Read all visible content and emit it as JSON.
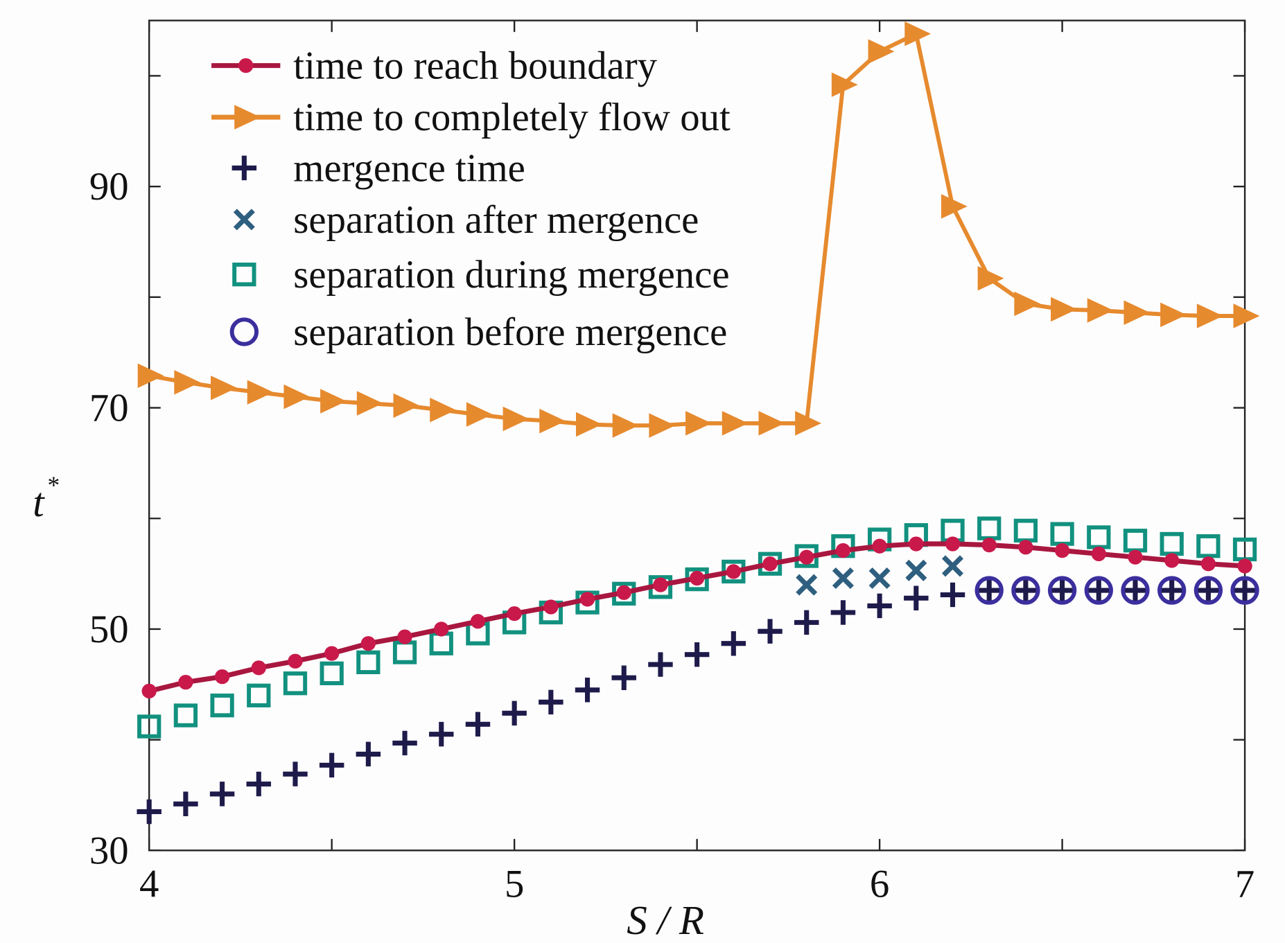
{
  "chart_data": {
    "type": "line",
    "title": "",
    "xlabel": "S / R",
    "ylabel": "t",
    "ylabel_superscript": "*",
    "xlim": [
      4,
      7
    ],
    "ylim": [
      30,
      105
    ],
    "xticks": [
      4,
      4.5,
      5,
      5.5,
      6,
      6.5,
      7
    ],
    "xtick_labels": [
      "4",
      "5",
      "6",
      "7"
    ],
    "xtick_label_values": [
      4,
      5,
      6,
      7
    ],
    "yticks": [
      30,
      40,
      50,
      60,
      70,
      80,
      90,
      100
    ],
    "ytick_labels": [
      "30",
      "50",
      "70",
      "90"
    ],
    "ytick_label_values": [
      30,
      50,
      70,
      90
    ],
    "grid": false,
    "legend_position": "top-left",
    "series": [
      {
        "name": "time to reach boundary",
        "style": "line-dot",
        "color": "#a8173f",
        "marker_color": "#c8194a",
        "x": [
          4.0,
          4.1,
          4.2,
          4.3,
          4.4,
          4.5,
          4.6,
          4.7,
          4.8,
          4.9,
          5.0,
          5.1,
          5.2,
          5.3,
          5.4,
          5.5,
          5.6,
          5.7,
          5.8,
          5.9,
          6.0,
          6.1,
          6.2,
          6.3,
          6.4,
          6.5,
          6.6,
          6.7,
          6.8,
          6.9,
          7.0
        ],
        "y": [
          44.4,
          45.2,
          45.7,
          46.5,
          47.1,
          47.8,
          48.7,
          49.3,
          50.0,
          50.7,
          51.4,
          52.0,
          52.7,
          53.3,
          54.0,
          54.6,
          55.2,
          55.9,
          56.5,
          57.1,
          57.5,
          57.7,
          57.7,
          57.6,
          57.4,
          57.1,
          56.8,
          56.5,
          56.2,
          55.9,
          55.7
        ]
      },
      {
        "name": "time to completely flow out",
        "style": "line-triangle",
        "color": "#e68a2e",
        "marker_color": "#e68a2e",
        "x": [
          4.0,
          4.1,
          4.2,
          4.3,
          4.4,
          4.5,
          4.6,
          4.7,
          4.8,
          4.9,
          5.0,
          5.1,
          5.2,
          5.3,
          5.4,
          5.5,
          5.6,
          5.7,
          5.8,
          5.9,
          6.0,
          6.1,
          6.2,
          6.3,
          6.4,
          6.5,
          6.6,
          6.7,
          6.8,
          6.9,
          7.0
        ],
        "y": [
          72.9,
          72.3,
          71.8,
          71.4,
          71.0,
          70.6,
          70.4,
          70.2,
          69.8,
          69.4,
          69.0,
          68.8,
          68.5,
          68.4,
          68.4,
          68.6,
          68.6,
          68.6,
          68.6,
          99.2,
          102.2,
          103.8,
          88.2,
          81.7,
          79.4,
          78.9,
          78.8,
          78.6,
          78.4,
          78.3,
          78.3
        ]
      },
      {
        "name": "mergence time",
        "style": "plus",
        "color": "#1e1b4b",
        "x": [
          4.0,
          4.1,
          4.2,
          4.3,
          4.4,
          4.5,
          4.6,
          4.7,
          4.8,
          4.9,
          5.0,
          5.1,
          5.2,
          5.3,
          5.4,
          5.5,
          5.6,
          5.7,
          5.8,
          5.9,
          6.0,
          6.1,
          6.2,
          6.3,
          6.4,
          6.5,
          6.6,
          6.7,
          6.8,
          6.9,
          7.0
        ],
        "y": [
          33.5,
          34.2,
          35.1,
          36.0,
          36.9,
          37.7,
          38.7,
          39.7,
          40.5,
          41.4,
          42.4,
          43.4,
          44.5,
          45.6,
          46.8,
          47.7,
          48.7,
          49.8,
          50.6,
          51.5,
          52.1,
          52.8,
          53.1,
          53.5,
          53.5,
          53.5,
          53.5,
          53.5,
          53.5,
          53.5,
          53.5
        ]
      },
      {
        "name": "separation after mergence",
        "style": "cross",
        "color": "#2f5f7f",
        "x": [
          5.8,
          5.9,
          6.0,
          6.1,
          6.2
        ],
        "y": [
          54.0,
          54.6,
          54.6,
          55.3,
          55.7
        ]
      },
      {
        "name": "separation during mergence",
        "style": "square",
        "color": "#12917f",
        "x": [
          4.0,
          4.1,
          4.2,
          4.3,
          4.4,
          4.5,
          4.6,
          4.7,
          4.8,
          4.9,
          5.0,
          5.1,
          5.2,
          5.3,
          5.4,
          5.5,
          5.6,
          5.7,
          5.8,
          5.9,
          6.0,
          6.1,
          6.2,
          6.3,
          6.4,
          6.5,
          6.6,
          6.7,
          6.8,
          6.9,
          7.0
        ],
        "y": [
          41.2,
          42.2,
          43.1,
          44.0,
          45.1,
          46.0,
          47.0,
          47.9,
          48.7,
          49.6,
          50.6,
          51.5,
          52.4,
          53.2,
          53.8,
          54.5,
          55.2,
          55.9,
          56.6,
          57.5,
          58.1,
          58.5,
          58.9,
          59.1,
          58.9,
          58.6,
          58.3,
          58.0,
          57.7,
          57.5,
          57.2
        ]
      },
      {
        "name": "separation before mergence",
        "style": "circle",
        "color": "#3b2f9e",
        "x": [
          6.3,
          6.4,
          6.5,
          6.6,
          6.7,
          6.8,
          6.9,
          7.0
        ],
        "y": [
          53.5,
          53.5,
          53.5,
          53.5,
          53.5,
          53.5,
          53.5,
          53.5
        ]
      }
    ]
  }
}
